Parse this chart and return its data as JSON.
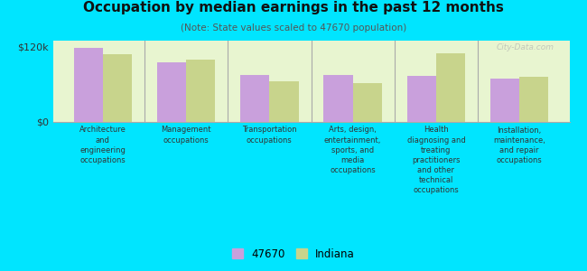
{
  "title": "Occupation by median earnings in the past 12 months",
  "subtitle": "(Note: State values scaled to 47670 population)",
  "categories": [
    "Architecture\nand\nengineering\noccupations",
    "Management\noccupations",
    "Transportation\noccupations",
    "Arts, design,\nentertainment,\nsports, and\nmedia\noccupations",
    "Health\ndiagnosing and\ntreating\npractitioners\nand other\ntechnical\noccupations",
    "Installation,\nmaintenance,\nand repair\noccupations"
  ],
  "values_47670": [
    118000,
    95000,
    75000,
    75000,
    73000,
    70000
  ],
  "values_indiana": [
    108000,
    100000,
    65000,
    62000,
    110000,
    72000
  ],
  "color_47670": "#c9a0dc",
  "color_indiana": "#c8d48c",
  "bar_width": 0.35,
  "ylim": [
    0,
    130000
  ],
  "yticks": [
    0,
    120000
  ],
  "ytick_labels": [
    "$0",
    "$120k"
  ],
  "background_color": "#e8f5d0",
  "outer_background": "#00e5ff",
  "legend_label_47670": "47670",
  "legend_label_indiana": "Indiana",
  "watermark": "City-Data.com"
}
